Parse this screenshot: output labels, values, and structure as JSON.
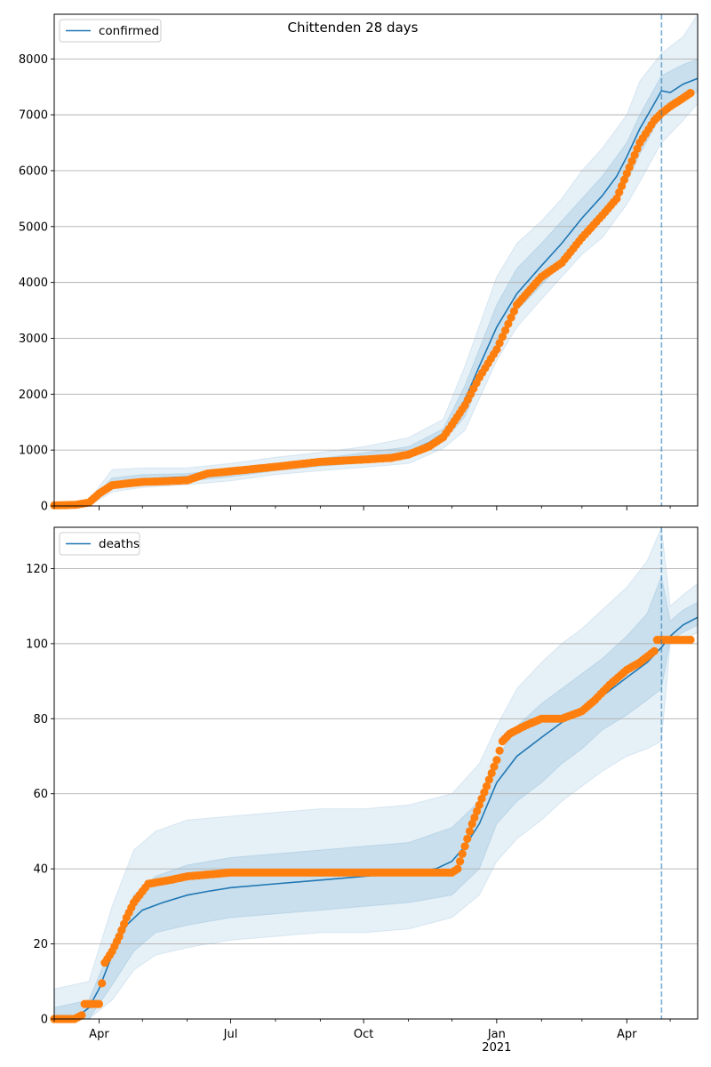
{
  "figure": {
    "title": "Chittenden 28 days",
    "month_labels": [
      "Apr",
      "Jul",
      "Oct",
      "Jan",
      "Apr"
    ],
    "year_label": "2021"
  },
  "chart_data": [
    {
      "type": "line",
      "name": "confirmed",
      "xlim": [
        "2020-03-01",
        "2021-05-20"
      ],
      "ylim": [
        0,
        8800
      ],
      "yticks": [
        0,
        1000,
        2000,
        3000,
        4000,
        5000,
        6000,
        7000,
        8000
      ],
      "grid": "y",
      "legend": {
        "position": "top-left",
        "entries": [
          "confirmed"
        ]
      },
      "vline_date": "2021-04-25",
      "colors": {
        "model": "#1f77b4",
        "observed": "#ff7f0e",
        "band": "#1f77b4"
      },
      "model": {
        "x": [
          "2020-03-01",
          "2020-03-16",
          "2020-03-25",
          "2020-04-01",
          "2020-04-10",
          "2020-04-20",
          "2020-05-01",
          "2020-05-15",
          "2020-06-01",
          "2020-06-15",
          "2020-07-01",
          "2020-08-01",
          "2020-09-01",
          "2020-10-01",
          "2020-10-20",
          "2020-11-01",
          "2020-11-15",
          "2020-11-25",
          "2020-12-01",
          "2020-12-10",
          "2020-12-20",
          "2021-01-01",
          "2021-01-15",
          "2021-02-01",
          "2021-02-15",
          "2021-03-01",
          "2021-03-15",
          "2021-03-25",
          "2021-04-01",
          "2021-04-10",
          "2021-04-20",
          "2021-04-25",
          "2021-05-01",
          "2021-05-10",
          "2021-05-20"
        ],
        "y": [
          0,
          0,
          20,
          150,
          380,
          430,
          480,
          500,
          520,
          560,
          610,
          700,
          790,
          850,
          900,
          970,
          1130,
          1300,
          1480,
          1900,
          2500,
          3200,
          3800,
          4300,
          4700,
          5150,
          5550,
          5900,
          6250,
          6750,
          7200,
          7430,
          7400,
          7550,
          7650
        ]
      },
      "observed": {
        "x": [
          "2020-03-01",
          "2020-03-16",
          "2020-03-25",
          "2020-04-01",
          "2020-04-10",
          "2020-04-20",
          "2020-05-01",
          "2020-05-15",
          "2020-06-01",
          "2020-06-15",
          "2020-07-01",
          "2020-08-01",
          "2020-09-01",
          "2020-10-01",
          "2020-10-20",
          "2020-11-01",
          "2020-11-15",
          "2020-11-25",
          "2020-12-01",
          "2020-12-10",
          "2020-12-20",
          "2021-01-01",
          "2021-01-15",
          "2021-02-01",
          "2021-02-15",
          "2021-03-01",
          "2021-03-15",
          "2021-03-25",
          "2021-04-01",
          "2021-04-10",
          "2021-04-20",
          "2021-04-25",
          "2021-05-01",
          "2021-05-10",
          "2021-05-15"
        ],
        "y": [
          10,
          20,
          60,
          220,
          370,
          400,
          430,
          440,
          460,
          580,
          620,
          700,
          790,
          830,
          860,
          920,
          1060,
          1230,
          1450,
          1800,
          2300,
          2800,
          3600,
          4100,
          4350,
          4800,
          5200,
          5500,
          5950,
          6500,
          6900,
          7030,
          7150,
          7300,
          7390
        ]
      },
      "bands": {
        "x": [
          "2020-03-01",
          "2020-03-25",
          "2020-04-10",
          "2020-05-01",
          "2020-06-01",
          "2020-07-01",
          "2020-08-01",
          "2020-09-01",
          "2020-10-01",
          "2020-11-01",
          "2020-11-25",
          "2020-12-10",
          "2021-01-01",
          "2021-01-15",
          "2021-02-01",
          "2021-02-15",
          "2021-03-01",
          "2021-03-15",
          "2021-04-01",
          "2021-04-10",
          "2021-04-25",
          "2021-05-10",
          "2021-05-20"
        ],
        "outer_upper": [
          5,
          100,
          650,
          680,
          680,
          760,
          870,
          960,
          1060,
          1220,
          1550,
          2500,
          4100,
          4700,
          5100,
          5500,
          6000,
          6400,
          7000,
          7600,
          8100,
          8400,
          8800
        ],
        "outer_lower": [
          0,
          0,
          250,
          330,
          380,
          450,
          560,
          630,
          690,
          760,
          1030,
          1350,
          2600,
          3200,
          3700,
          4100,
          4500,
          4800,
          5400,
          5800,
          6500,
          6900,
          7200
        ],
        "inner_upper": [
          2,
          60,
          500,
          560,
          580,
          660,
          760,
          850,
          950,
          1060,
          1380,
          2150,
          3600,
          4250,
          4700,
          5100,
          5500,
          5900,
          6500,
          7000,
          7700,
          7900,
          8000
        ],
        "inner_lower": [
          0,
          0,
          330,
          410,
          450,
          520,
          630,
          710,
          770,
          850,
          1150,
          1600,
          2950,
          3500,
          3950,
          4350,
          4750,
          5150,
          5800,
          6300,
          7000,
          7350,
          7400
        ]
      }
    },
    {
      "type": "line",
      "name": "deaths",
      "xlim": [
        "2020-03-01",
        "2021-05-20"
      ],
      "ylim": [
        0,
        131
      ],
      "yticks": [
        0,
        20,
        40,
        60,
        80,
        100,
        120
      ],
      "grid": "y",
      "legend": {
        "position": "top-left",
        "entries": [
          "deaths"
        ]
      },
      "vline_date": "2021-04-25",
      "colors": {
        "model": "#1f77b4",
        "observed": "#ff7f0e",
        "band": "#1f77b4"
      },
      "model": {
        "x": [
          "2020-03-01",
          "2020-03-15",
          "2020-03-25",
          "2020-04-01",
          "2020-04-10",
          "2020-04-20",
          "2020-05-01",
          "2020-05-15",
          "2020-06-01",
          "2020-06-15",
          "2020-07-01",
          "2020-08-01",
          "2020-09-01",
          "2020-10-01",
          "2020-11-01",
          "2020-11-20",
          "2020-12-01",
          "2020-12-10",
          "2020-12-20",
          "2021-01-01",
          "2021-01-15",
          "2021-02-01",
          "2021-02-15",
          "2021-03-01",
          "2021-03-15",
          "2021-04-01",
          "2021-04-15",
          "2021-04-25",
          "2021-05-01",
          "2021-05-10",
          "2021-05-20"
        ],
        "y": [
          0,
          0,
          3,
          8,
          17,
          25,
          29,
          31,
          33,
          34,
          35,
          36,
          37,
          38,
          39,
          40,
          42,
          46,
          52,
          63,
          70,
          75,
          79,
          82,
          86,
          91,
          95,
          99,
          102,
          105,
          107
        ]
      },
      "observed": {
        "x": [
          "2020-03-01",
          "2020-03-15",
          "2020-03-20",
          "2020-03-22",
          "2020-04-01",
          "2020-04-05",
          "2020-04-10",
          "2020-04-15",
          "2020-04-20",
          "2020-04-25",
          "2020-05-05",
          "2020-05-20",
          "2020-06-01",
          "2020-07-01",
          "2020-08-01",
          "2020-09-01",
          "2020-10-01",
          "2020-11-01",
          "2020-12-01",
          "2020-12-05",
          "2020-12-10",
          "2020-12-15",
          "2020-12-20",
          "2020-12-25",
          "2021-01-01",
          "2021-01-05",
          "2021-01-10",
          "2021-01-20",
          "2021-02-01",
          "2021-02-15",
          "2021-03-01",
          "2021-03-10",
          "2021-03-20",
          "2021-04-01",
          "2021-04-10",
          "2021-04-20",
          "2021-04-22",
          "2021-05-01",
          "2021-05-15"
        ],
        "y": [
          0,
          0,
          1,
          4,
          4,
          15,
          18,
          22,
          27,
          31,
          36,
          37,
          38,
          39,
          39,
          39,
          39,
          39,
          39,
          40,
          46,
          52,
          57,
          62,
          69,
          74,
          76,
          78,
          80,
          80,
          82,
          85,
          89,
          93,
          95,
          98,
          101,
          101,
          101
        ]
      },
      "bands": {
        "x": [
          "2020-03-01",
          "2020-03-25",
          "2020-04-10",
          "2020-04-25",
          "2020-05-10",
          "2020-06-01",
          "2020-07-01",
          "2020-08-01",
          "2020-09-01",
          "2020-10-01",
          "2020-11-01",
          "2020-12-01",
          "2020-12-20",
          "2021-01-01",
          "2021-01-15",
          "2021-02-01",
          "2021-02-15",
          "2021-03-01",
          "2021-03-15",
          "2021-04-01",
          "2021-04-15",
          "2021-04-25",
          "2021-05-01",
          "2021-05-10",
          "2021-05-20"
        ],
        "outer_upper": [
          8,
          10,
          30,
          45,
          50,
          53,
          54,
          55,
          56,
          56,
          57,
          60,
          68,
          78,
          88,
          95,
          100,
          104,
          109,
          115,
          122,
          131,
          110,
          113,
          116
        ],
        "outer_lower": [
          0,
          0,
          5,
          13,
          17,
          19,
          21,
          22,
          23,
          23,
          24,
          27,
          33,
          42,
          48,
          53,
          58,
          62,
          66,
          70,
          72,
          74,
          100,
          101,
          103
        ],
        "inner_upper": [
          3,
          5,
          20,
          33,
          38,
          41,
          43,
          44,
          45,
          46,
          47,
          51,
          58,
          69,
          78,
          84,
          88,
          92,
          96,
          102,
          108,
          118,
          106,
          109,
          111
        ],
        "inner_lower": [
          0,
          0,
          9,
          18,
          23,
          25,
          27,
          28,
          29,
          30,
          31,
          33,
          40,
          52,
          58,
          63,
          68,
          72,
          77,
          81,
          85,
          88,
          101,
          103,
          105
        ]
      }
    }
  ]
}
